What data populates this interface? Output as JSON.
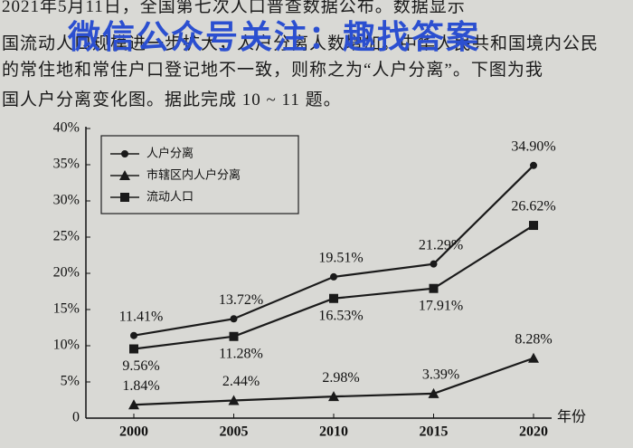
{
  "passage": [
    "2021年5月11日，全国第七次人口普查数据公布。数据显示",
    "国流动人口规模进一步扩大，人户分离人数增加。中华人民共和国境内公民",
    "的常住地和常住户口登记地不一致，则称之为“人户分离”。下图为我",
    "国人户分离变化图。据此完成 10 ~ 11 题。"
  ],
  "watermark": "微信公众号关注：趣找答案",
  "chart_data": {
    "type": "line",
    "x_label": "年份",
    "categories": [
      "2000",
      "2005",
      "2010",
      "2015",
      "2020"
    ],
    "ylim": [
      0,
      40
    ],
    "yticks": [
      0,
      {
        "value": 5,
        "label": "5%"
      },
      {
        "value": 10,
        "label": "10%"
      },
      {
        "value": 15,
        "label": "15%"
      },
      {
        "value": 20,
        "label": "20%"
      },
      {
        "value": 25,
        "label": "25%"
      },
      {
        "value": 30,
        "label": "30%"
      },
      {
        "value": 35,
        "label": "35%"
      },
      {
        "value": 40,
        "label": "40%"
      }
    ],
    "series": [
      {
        "name": "人户分离",
        "marker": "circle",
        "color": "#1a1a1a",
        "values": [
          11.41,
          13.72,
          19.51,
          21.29,
          34.9
        ],
        "value_labels": [
          "11.41%",
          "13.72%",
          "19.51%",
          "21.29%",
          "34.90%"
        ]
      },
      {
        "name": "市辖区内人户分离",
        "marker": "triangle",
        "color": "#1a1a1a",
        "values": [
          1.84,
          2.44,
          2.98,
          3.39,
          8.28
        ],
        "value_labels": [
          "1.84%",
          "2.44%",
          "2.98%",
          "3.39%",
          "8.28%"
        ]
      },
      {
        "name": "流动人口",
        "marker": "square",
        "color": "#1a1a1a",
        "values": [
          9.56,
          11.28,
          16.53,
          17.91,
          26.62
        ],
        "value_labels": [
          "9.56%",
          "11.28%",
          "16.53%",
          "17.91%",
          "26.62%"
        ]
      }
    ]
  }
}
